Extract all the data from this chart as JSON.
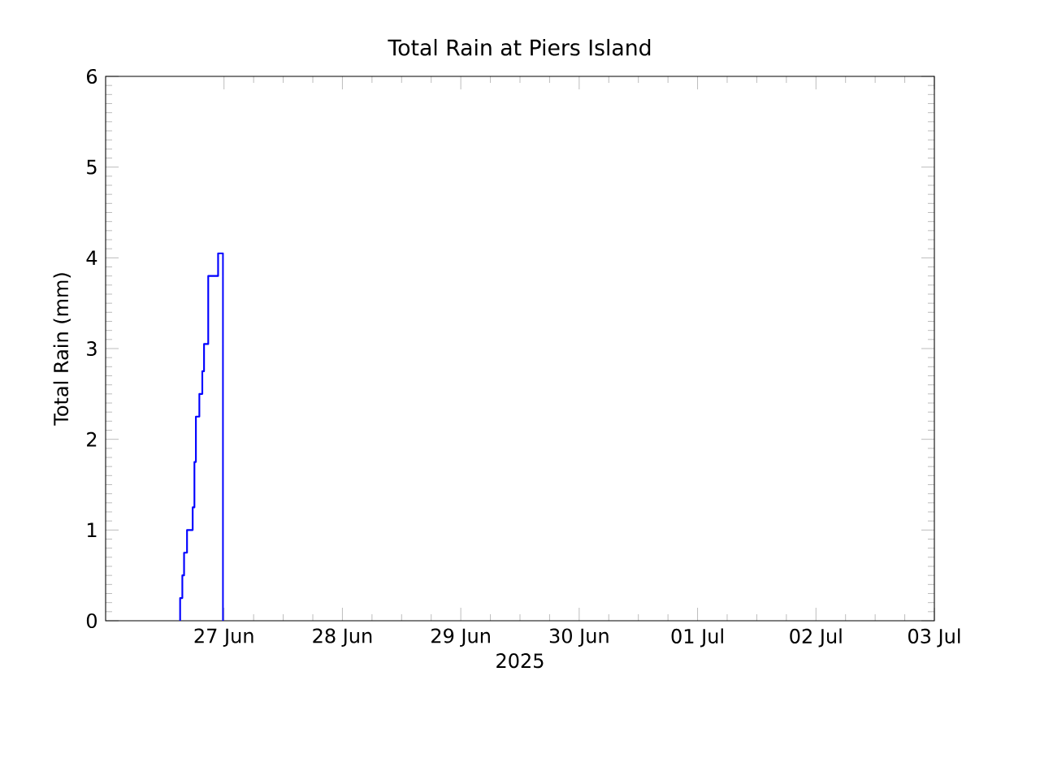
{
  "chart_data": {
    "type": "step",
    "title": "Total Rain at Piers Island",
    "xlabel": "2025",
    "ylabel": "Total Rain (mm)",
    "x": [
      "2025-06-26T15:06",
      "2025-06-26T15:06",
      "2025-06-26T15:33",
      "2025-06-26T15:54",
      "2025-06-26T16:30",
      "2025-06-26T17:39",
      "2025-06-26T18:00",
      "2025-06-26T18:18",
      "2025-06-26T19:00",
      "2025-06-26T19:36",
      "2025-06-26T19:57",
      "2025-06-26T20:48",
      "2025-06-26T22:48",
      "2025-06-26T23:48"
    ],
    "series": [
      {
        "color": "#0000ff",
        "values": [
          0,
          0.25,
          0.5,
          0.75,
          1.0,
          1.25,
          1.75,
          2.25,
          2.5,
          2.75,
          3.05,
          3.8,
          4.05,
          0
        ]
      }
    ],
    "xlim": [
      "2025-06-26",
      "2025-07-03"
    ],
    "xticks": [
      {
        "value": "2025-06-27",
        "label": "27 Jun"
      },
      {
        "value": "2025-06-28",
        "label": "28 Jun"
      },
      {
        "value": "2025-06-29",
        "label": "29 Jun"
      },
      {
        "value": "2025-06-30",
        "label": "30 Jun"
      },
      {
        "value": "2025-07-01",
        "label": "01 Jul"
      },
      {
        "value": "2025-07-02",
        "label": "02 Jul"
      },
      {
        "value": "2025-07-03",
        "label": "03 Jul"
      }
    ],
    "ylim": [
      0,
      6
    ],
    "yticks": [
      0,
      1,
      2,
      3,
      4,
      5,
      6
    ]
  }
}
